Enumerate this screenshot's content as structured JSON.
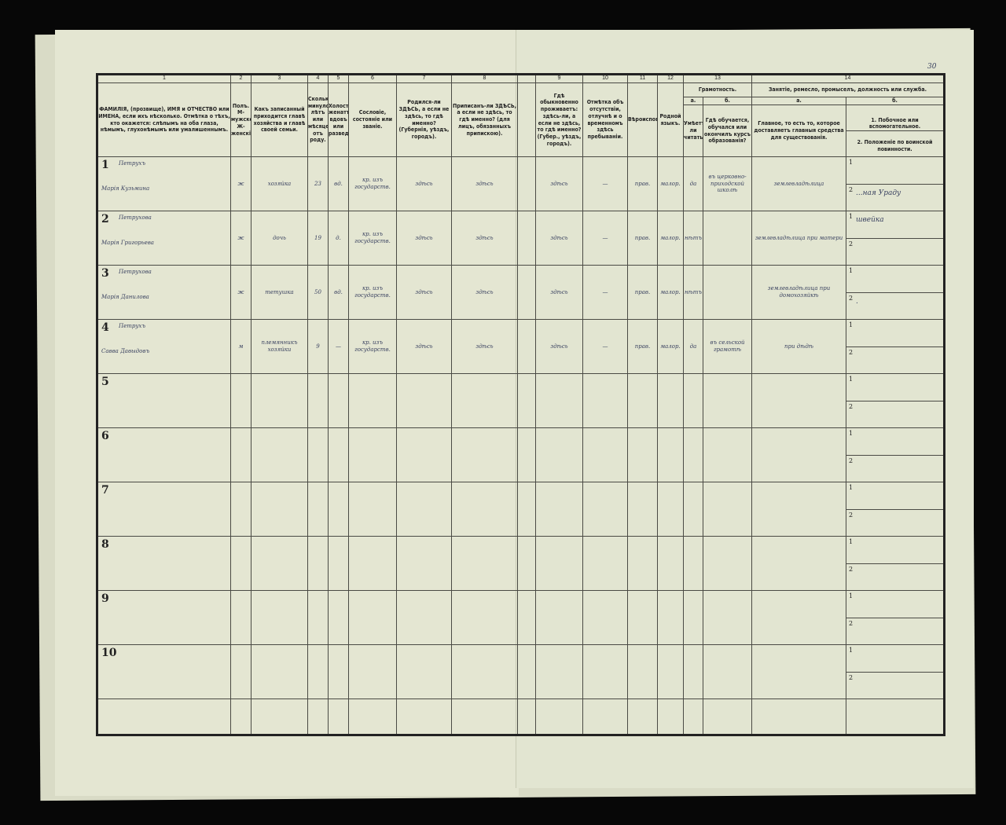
{
  "page_number": "30",
  "columns": {
    "numbers": [
      "1",
      "2",
      "3",
      "4",
      "5",
      "6",
      "7",
      "8",
      "",
      "9",
      "10",
      "11",
      "12",
      "13",
      "14"
    ],
    "c1": "ФАМИЛІЯ, (прозвище), ИМЯ и ОТЧЕСТВО или ИМЕНА, если ихъ нѣсколько. Отмѣтка о тѣхъ, кто окажется: слѣпымъ на оба глаза, нѣмымъ, глухонѣмымъ или умалишеннымъ.",
    "c2": "Полъ. М-мужской. Ж-женскій.",
    "c3": "Какъ записанный приходится главѣ хозяйства и главѣ своей семьи.",
    "c4": "Сколько минуло лѣтъ или мѣсяцевъ отъ роду.",
    "c5": "Холостъ, женатъ, вдовъ или разведенъ.",
    "c6": "Сословіе, состояніе или званіе.",
    "c7": "Родился-ли ЗДѢСЬ, а если не здѣсь, то гдѣ именно? (Губернія, уѣздъ, городъ).",
    "c8": "Приписанъ-ли ЗДѢСЬ, а если не здѣсь, то гдѣ именно? (для лицъ, обязанныхъ припискою).",
    "c9": "Гдѣ обыкновенно проживаетъ: здѣсь-ли, а если не здѣсь, то гдѣ именно? (Губер., уѣздъ, городъ).",
    "c10": "Отмѣтка объ отсутствіи, отлучнѣ и о временномъ здѣсь пребываніи.",
    "c11": "Вѣроисповѣданіе.",
    "c12": "Родной языкъ.",
    "c13": "Грамотность.",
    "c13a": "а.",
    "c13b": "б.",
    "c13a_text": "Умѣетъ-ли читать?",
    "c13b_text": "Гдѣ обучается, обучался или окончилъ курсъ образованія?",
    "c14": "Занятіе, ремесло, промыселъ, должность или служба.",
    "c14a": "а.",
    "c14b": "б.",
    "c14a_text": "Главное, то есть то, которое доставляетъ главныя средства для существованія.",
    "c14b_1": "1. Побочное или вспомогательное.",
    "c14b_2": "2. Положеніе по воинской повинности."
  },
  "rows": [
    {
      "n": "1",
      "surname": "Петрухъ",
      "name": "Марія Кузьмина",
      "sex": "ж",
      "relation": "хозяйка",
      "age": "23",
      "marital": "вд.",
      "estate": "кр. изъ государств.",
      "born": "здѣсь",
      "registered": "здѣсь",
      "resides": "здѣсь",
      "absence": "—",
      "religion": "прав.",
      "language": "малор.",
      "reads": "да",
      "education": "въ церковно-приходской школѣ",
      "occ_main": "землевладѣлица",
      "occ_side": "",
      "military": "...ная Ураду"
    },
    {
      "n": "2",
      "surname": "Петрухова",
      "name": "Марія Григорьева",
      "sex": "ж",
      "relation": "дочь",
      "age": "19",
      "marital": "д.",
      "estate": "кр. изъ государств.",
      "born": "здѣсь",
      "registered": "здѣсь",
      "resides": "здѣсь",
      "absence": "—",
      "religion": "прав.",
      "language": "малор.",
      "reads": "нѣтъ",
      "education": "",
      "occ_main": "землевладѣлица при матери",
      "occ_side": "швейка",
      "military": ""
    },
    {
      "n": "3",
      "surname": "Петрухова",
      "name": "Марія Данилова",
      "sex": "ж",
      "relation": "тетушка",
      "age": "50",
      "marital": "вд.",
      "estate": "кр. изъ государств.",
      "born": "здѣсь",
      "registered": "здѣсь",
      "resides": "здѣсь",
      "absence": "—",
      "religion": "прав.",
      "language": "малор.",
      "reads": "нѣтъ",
      "education": "",
      "occ_main": "землевладѣлица при домохозяйкѣ",
      "occ_side": "",
      "military": "."
    },
    {
      "n": "4",
      "surname": "Петрухъ",
      "name": "Савва Давыдовъ",
      "sex": "м",
      "relation": "племянникъ хозяйки",
      "age": "9",
      "marital": "—",
      "estate": "кр. изъ государств.",
      "born": "здѣсь",
      "registered": "здѣсь",
      "resides": "здѣсь",
      "absence": "—",
      "religion": "прав.",
      "language": "малор.",
      "reads": "да",
      "education": "въ сельской грамотѣ",
      "occ_main": "при дѣдѣ",
      "occ_side": "",
      "military": ""
    },
    {
      "n": "5"
    },
    {
      "n": "6"
    },
    {
      "n": "7"
    },
    {
      "n": "8"
    },
    {
      "n": "9"
    },
    {
      "n": "10"
    }
  ],
  "sub_labels": [
    "1",
    "2"
  ]
}
